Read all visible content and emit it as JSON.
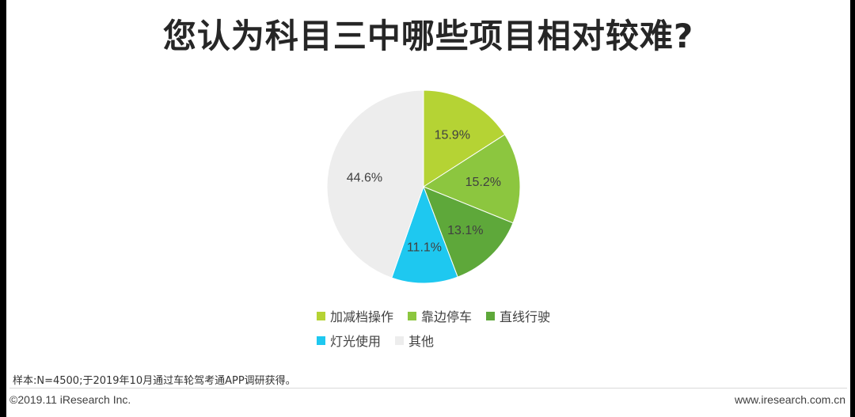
{
  "title": "您认为科目三中哪些项目相对较难?",
  "chart_data": {
    "type": "pie",
    "title": "您认为科目三中哪些项目相对较难?",
    "slices": [
      {
        "label": "加减档操作",
        "value": 15.9,
        "display": "15.9%",
        "color": "#b5d334"
      },
      {
        "label": "靠边停车",
        "value": 15.2,
        "display": "15.2%",
        "color": "#8cc63f"
      },
      {
        "label": "直线行驶",
        "value": 13.1,
        "display": "13.1%",
        "color": "#5ea83a"
      },
      {
        "label": "灯光使用",
        "value": 11.1,
        "display": "11.1%",
        "color": "#1ec8f0"
      },
      {
        "label": "其他",
        "value": 44.6,
        "display": "44.6%",
        "color": "#ededed"
      }
    ],
    "legend_placement": "bottom"
  },
  "footer": {
    "note": "样本:N=4500;于2019年10月通过车轮驾考通APP调研获得。",
    "copyright": "©2019.11 iResearch Inc.",
    "website": "www.iresearch.com.cn"
  }
}
